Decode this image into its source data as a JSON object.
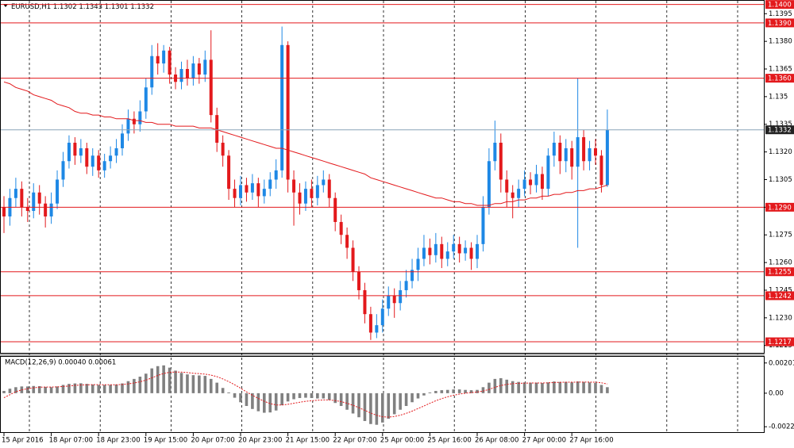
{
  "chart_data": [
    {
      "type": "candlestick",
      "title": "EURUSD,H1",
      "up_color": "#1e88e5",
      "down_color": "#e3191c",
      "ylim": [
        1.1211,
        1.1402
      ],
      "yticks": [
        1.1395,
        {
          "value": 1.138,
          "label": "1.1380"
        },
        1.1365,
        1.135,
        1.1335,
        {
          "value": 1.132,
          "label": "1.1320"
        },
        1.1305,
        {
          "value": 1.129,
          "label": "1.1290"
        },
        1.1275,
        {
          "value": 1.126,
          "label": "1.1260"
        },
        1.1245,
        {
          "value": 1.123,
          "label": "1.1230"
        },
        1.1215
      ],
      "levels_color": "#e3191c",
      "levels": [
        {
          "value": 1.14,
          "label": "1.1400"
        },
        {
          "value": 1.139,
          "label": "1.1390"
        },
        {
          "value": 1.136,
          "label": "1.1360"
        },
        {
          "value": 1.129,
          "label": "1.1290"
        },
        1.1255,
        1.1242,
        1.1217
      ],
      "current_price": 1.1332,
      "categories": [
        "15 Apr 2016",
        null,
        null,
        null,
        null,
        null,
        null,
        null,
        "18 Apr 07:00",
        null,
        null,
        null,
        null,
        null,
        null,
        null,
        "18 Apr 23:00",
        null,
        null,
        null,
        null,
        null,
        null,
        null,
        "19 Apr 15:00",
        null,
        null,
        null,
        null,
        null,
        null,
        null,
        "20 Apr 07:00",
        null,
        null,
        null,
        null,
        null,
        null,
        null,
        "20 Apr 23:00",
        null,
        null,
        null,
        null,
        null,
        null,
        null,
        "21 Apr 15:00",
        null,
        null,
        null,
        null,
        null,
        null,
        null,
        "22 Apr 07:00",
        null,
        null,
        null,
        null,
        null,
        null,
        null,
        "25 Apr 00:00",
        null,
        null,
        null,
        null,
        null,
        null,
        null,
        "25 Apr 16:00",
        null,
        null,
        null,
        null,
        null,
        null,
        null,
        "26 Apr 08:00",
        null,
        null,
        null,
        null,
        null,
        null,
        null,
        "27 Apr 00:00",
        null,
        null,
        null,
        null,
        null,
        null,
        null,
        "27 Apr 16:00",
        null,
        null,
        null,
        null,
        null,
        null
      ],
      "ohlc": [
        [
          1.129,
          1.1296,
          1.1276,
          1.1285
        ],
        [
          1.1285,
          1.13,
          1.128,
          1.1295
        ],
        [
          1.1295,
          1.1306,
          1.129,
          1.13
        ],
        [
          1.13,
          1.1304,
          1.1285,
          1.129
        ],
        [
          1.129,
          1.1295,
          1.1282,
          1.1288
        ],
        [
          1.1288,
          1.1303,
          1.1284,
          1.1298
        ],
        [
          1.1298,
          1.1302,
          1.1286,
          1.1292
        ],
        [
          1.1292,
          1.1296,
          1.1279,
          1.1285
        ],
        [
          1.1285,
          1.1298,
          1.1281,
          1.1292
        ],
        [
          1.1292,
          1.131,
          1.1289,
          1.1305
        ],
        [
          1.1305,
          1.132,
          1.1301,
          1.1315
        ],
        [
          1.1315,
          1.1329,
          1.1311,
          1.1325
        ],
        [
          1.1325,
          1.1328,
          1.1313,
          1.1318
        ],
        [
          1.1318,
          1.1327,
          1.1314,
          1.1322
        ],
        [
          1.1322,
          1.1325,
          1.1308,
          1.1312
        ],
        [
          1.1312,
          1.1322,
          1.1307,
          1.1318
        ],
        [
          1.1318,
          1.1321,
          1.1306,
          1.131
        ],
        [
          1.131,
          1.1319,
          1.1306,
          1.1315
        ],
        [
          1.1315,
          1.1323,
          1.1311,
          1.1318
        ],
        [
          1.1318,
          1.1327,
          1.1314,
          1.1322
        ],
        [
          1.1322,
          1.1335,
          1.1318,
          1.133
        ],
        [
          1.133,
          1.1343,
          1.1326,
          1.1338
        ],
        [
          1.1338,
          1.1342,
          1.133,
          1.1335
        ],
        [
          1.1335,
          1.1348,
          1.1331,
          1.1342
        ],
        [
          1.1342,
          1.136,
          1.1338,
          1.1355
        ],
        [
          1.1355,
          1.1378,
          1.1351,
          1.1372
        ],
        [
          1.1372,
          1.1379,
          1.1362,
          1.1368
        ],
        [
          1.1368,
          1.1378,
          1.1363,
          1.1375
        ],
        [
          1.1375,
          1.1377,
          1.1357,
          1.1362
        ],
        [
          1.1362,
          1.1366,
          1.1354,
          1.1358
        ],
        [
          1.1358,
          1.1369,
          1.1354,
          1.1365
        ],
        [
          1.1365,
          1.137,
          1.1356,
          1.136
        ],
        [
          1.136,
          1.1372,
          1.1356,
          1.1368
        ],
        [
          1.1368,
          1.1371,
          1.1357,
          1.1362
        ],
        [
          1.1362,
          1.1375,
          1.1358,
          1.137
        ],
        [
          1.137,
          1.1386,
          1.1336,
          1.134
        ],
        [
          1.134,
          1.1344,
          1.132,
          1.1325
        ],
        [
          1.1325,
          1.1329,
          1.1312,
          1.1318
        ],
        [
          1.1318,
          1.1321,
          1.1294,
          1.13
        ],
        [
          1.13,
          1.1305,
          1.129,
          1.1295
        ],
        [
          1.1295,
          1.1307,
          1.1291,
          1.1302
        ],
        [
          1.1302,
          1.1306,
          1.1293,
          1.1298
        ],
        [
          1.1298,
          1.1308,
          1.1294,
          1.1303
        ],
        [
          1.1303,
          1.1306,
          1.129,
          1.1296
        ],
        [
          1.1296,
          1.1305,
          1.1292,
          1.13
        ],
        [
          1.13,
          1.1309,
          1.1296,
          1.1305
        ],
        [
          1.1305,
          1.1316,
          1.13,
          1.131
        ],
        [
          1.131,
          1.1388,
          1.1306,
          1.1378
        ],
        [
          1.1378,
          1.138,
          1.1298,
          1.1305
        ],
        [
          1.1305,
          1.131,
          1.128,
          1.1298
        ],
        [
          1.1298,
          1.1303,
          1.1286,
          1.1292
        ],
        [
          1.1292,
          1.1304,
          1.1288,
          1.13
        ],
        [
          1.13,
          1.1305,
          1.129,
          1.1295
        ],
        [
          1.1295,
          1.1307,
          1.1291,
          1.1302
        ],
        [
          1.1302,
          1.131,
          1.1298,
          1.1305
        ],
        [
          1.1305,
          1.1308,
          1.129,
          1.1295
        ],
        [
          1.1295,
          1.1298,
          1.1277,
          1.1282
        ],
        [
          1.1282,
          1.1286,
          1.127,
          1.1275
        ],
        [
          1.1275,
          1.1279,
          1.1262,
          1.1268
        ],
        [
          1.1268,
          1.1272,
          1.125,
          1.1255
        ],
        [
          1.1255,
          1.1258,
          1.124,
          1.1245
        ],
        [
          1.1245,
          1.1249,
          1.1227,
          1.1232
        ],
        [
          1.1232,
          1.1236,
          1.1218,
          1.1222
        ],
        [
          1.1222,
          1.1232,
          1.1219,
          1.1226
        ],
        [
          1.1226,
          1.124,
          1.1222,
          1.1235
        ],
        [
          1.1235,
          1.1247,
          1.1231,
          1.1242
        ],
        [
          1.1242,
          1.1246,
          1.123,
          1.1238
        ],
        [
          1.1238,
          1.125,
          1.1234,
          1.1245
        ],
        [
          1.1245,
          1.1256,
          1.1241,
          1.125
        ],
        [
          1.125,
          1.1262,
          1.1246,
          1.1256
        ],
        [
          1.1256,
          1.1268,
          1.125,
          1.1262
        ],
        [
          1.1262,
          1.1275,
          1.1258,
          1.1268
        ],
        [
          1.1268,
          1.1273,
          1.1259,
          1.1264
        ],
        [
          1.1264,
          1.1276,
          1.126,
          1.127
        ],
        [
          1.127,
          1.1274,
          1.1257,
          1.1262
        ],
        [
          1.1262,
          1.1271,
          1.1258,
          1.1266
        ],
        [
          1.1266,
          1.1275,
          1.1262,
          1.127
        ],
        [
          1.127,
          1.1274,
          1.126,
          1.1265
        ],
        [
          1.1265,
          1.1272,
          1.1261,
          1.1268
        ],
        [
          1.1268,
          1.1271,
          1.1256,
          1.1262
        ],
        [
          1.1262,
          1.1275,
          1.1257,
          1.127
        ],
        [
          1.127,
          1.1296,
          1.1266,
          1.129
        ],
        [
          1.129,
          1.1322,
          1.1286,
          1.1315
        ],
        [
          1.1315,
          1.1337,
          1.131,
          1.1325
        ],
        [
          1.1325,
          1.133,
          1.1298,
          1.1305
        ],
        [
          1.1305,
          1.131,
          1.129,
          1.1298
        ],
        [
          1.1298,
          1.1302,
          1.1284,
          1.1295
        ],
        [
          1.1295,
          1.1305,
          1.129,
          1.13
        ],
        [
          1.13,
          1.131,
          1.1296,
          1.1305
        ],
        [
          1.1305,
          1.1309,
          1.1297,
          1.1302
        ],
        [
          1.1302,
          1.1313,
          1.1298,
          1.1308
        ],
        [
          1.1308,
          1.1312,
          1.1294,
          1.13
        ],
        [
          1.13,
          1.1322,
          1.1296,
          1.1318
        ],
        [
          1.1318,
          1.1331,
          1.1312,
          1.1325
        ],
        [
          1.1325,
          1.1329,
          1.1308,
          1.1315
        ],
        [
          1.1315,
          1.1327,
          1.1309,
          1.1322
        ],
        [
          1.1322,
          1.1326,
          1.1305,
          1.1312
        ],
        [
          1.1312,
          1.136,
          1.1268,
          1.1328
        ],
        [
          1.1328,
          1.1332,
          1.131,
          1.1315
        ],
        [
          1.1315,
          1.1326,
          1.131,
          1.1322
        ],
        [
          1.1322,
          1.1327,
          1.1313,
          1.1318
        ],
        [
          1.1318,
          1.1321,
          1.1298,
          1.1302
        ],
        [
          1.1302,
          1.1343,
          1.1301,
          1.1332
        ]
      ],
      "ma": {
        "color": "#e3191c",
        "values": [
          1.1358,
          1.1357,
          1.1355,
          1.1354,
          1.1353,
          1.1351,
          1.135,
          1.1349,
          1.1348,
          1.1346,
          1.1345,
          1.1344,
          1.1342,
          1.1341,
          1.1341,
          1.134,
          1.134,
          1.1339,
          1.1339,
          1.1338,
          1.1338,
          1.1338,
          1.1337,
          1.1337,
          1.1336,
          1.1336,
          1.1335,
          1.1335,
          1.1335,
          1.1334,
          1.1334,
          1.1334,
          1.1334,
          1.1333,
          1.1333,
          1.1333,
          1.1332,
          1.1331,
          1.133,
          1.1329,
          1.1328,
          1.1327,
          1.1326,
          1.1325,
          1.1324,
          1.1323,
          1.1322,
          1.1322,
          1.1321,
          1.132,
          1.1319,
          1.1318,
          1.1317,
          1.1316,
          1.1315,
          1.1314,
          1.1313,
          1.1312,
          1.1311,
          1.131,
          1.1309,
          1.1308,
          1.1306,
          1.1305,
          1.1304,
          1.1303,
          1.1302,
          1.1301,
          1.13,
          1.1299,
          1.1298,
          1.1297,
          1.1296,
          1.1295,
          1.1295,
          1.1294,
          1.1293,
          1.1293,
          1.1292,
          1.1292,
          1.1291,
          1.1291,
          1.1291,
          1.1292,
          1.1292,
          1.1293,
          1.1293,
          1.1294,
          1.1294,
          1.1295,
          1.1295,
          1.1296,
          1.1296,
          1.1297,
          1.1297,
          1.1298,
          1.1298,
          1.1299,
          1.1299,
          1.13,
          1.13,
          1.1301,
          1.1302
        ]
      }
    },
    {
      "type": "bar",
      "title": "MACD(12,26,9) 0.00040 0.00061",
      "color": "#808080",
      "ylim": [
        -0.00259,
        0.00242
      ],
      "yticks": [
        0.00201,
        {
          "value": 0,
          "label": "0.00"
        },
        -0.00223
      ],
      "values": [
        0.00015,
        0.0003,
        0.0004,
        0.00045,
        0.00045,
        0.00048,
        0.00047,
        0.00042,
        0.0004,
        0.00045,
        0.00055,
        0.00062,
        0.00065,
        0.00066,
        0.00062,
        0.00058,
        0.00055,
        0.00055,
        0.00055,
        0.00058,
        0.00065,
        0.0008,
        0.00095,
        0.0011,
        0.0013,
        0.00165,
        0.0018,
        0.00185,
        0.0017,
        0.0015,
        0.00135,
        0.00125,
        0.0012,
        0.00118,
        0.00115,
        0.00095,
        0.0007,
        0.00035,
        5e-05,
        -0.0003,
        -0.0006,
        -0.00085,
        -0.00105,
        -0.0012,
        -0.0013,
        -0.00128,
        -0.00115,
        -0.0008,
        -0.00055,
        -0.0004,
        -0.00032,
        -0.0003,
        -0.00032,
        -0.00035,
        -0.00035,
        -0.00045,
        -0.00065,
        -0.00085,
        -0.0011,
        -0.00135,
        -0.0016,
        -0.00185,
        -0.00205,
        -0.0021,
        -0.00195,
        -0.0017,
        -0.0014,
        -0.0011,
        -0.00085,
        -0.0006,
        -0.00035,
        -0.00015,
        5e-05,
        0.00015,
        0.0002,
        0.00022,
        0.00025,
        0.00025,
        0.00022,
        0.0002,
        0.00022,
        0.0004,
        0.0007,
        0.00095,
        0.001,
        0.0009,
        0.0008,
        0.00075,
        0.00072,
        0.0007,
        0.0007,
        0.00068,
        0.00072,
        0.00078,
        0.00075,
        0.00075,
        0.00072,
        0.00078,
        0.00075,
        0.00072,
        0.00068,
        0.00055,
        0.0004
      ],
      "signal": {
        "color": "#e3191c",
        "values": [
          -0.0003,
          -0.0001,
          0.0001,
          0.00022,
          0.0003,
          0.00036,
          0.0004,
          0.00041,
          0.00041,
          0.00042,
          0.00045,
          0.00048,
          0.00052,
          0.00055,
          0.00056,
          0.00057,
          0.00057,
          0.00056,
          0.00056,
          0.00056,
          0.00058,
          0.00062,
          0.00068,
          0.00076,
          0.00087,
          0.00102,
          0.00118,
          0.00131,
          0.00139,
          0.00141,
          0.0014,
          0.00137,
          0.00133,
          0.0013,
          0.00127,
          0.0012,
          0.0011,
          0.00095,
          0.00077,
          0.00056,
          0.00033,
          9e-05,
          -0.00014,
          -0.00035,
          -0.00054,
          -0.00069,
          -0.00078,
          -0.00078,
          -0.00074,
          -0.00067,
          -0.0006,
          -0.00054,
          -0.0005,
          -0.00047,
          -0.00045,
          -0.00045,
          -0.00049,
          -0.00056,
          -0.00067,
          -0.0008,
          -0.00096,
          -0.00114,
          -0.00132,
          -0.00147,
          -0.00157,
          -0.00159,
          -0.00155,
          -0.00146,
          -0.00134,
          -0.00119,
          -0.00102,
          -0.00085,
          -0.00067,
          -0.0005,
          -0.00036,
          -0.00024,
          -0.00014,
          -6e-05,
          0,
          4e-05,
          8e-05,
          0.00014,
          0.00025,
          0.00039,
          0.00051,
          0.00059,
          0.00063,
          0.00066,
          0.00067,
          0.00068,
          0.00068,
          0.00068,
          0.00069,
          0.00071,
          0.00072,
          0.00073,
          0.00073,
          0.00074,
          0.00074,
          0.00074,
          0.00073,
          0.00069,
          0.00061
        ]
      }
    }
  ]
}
